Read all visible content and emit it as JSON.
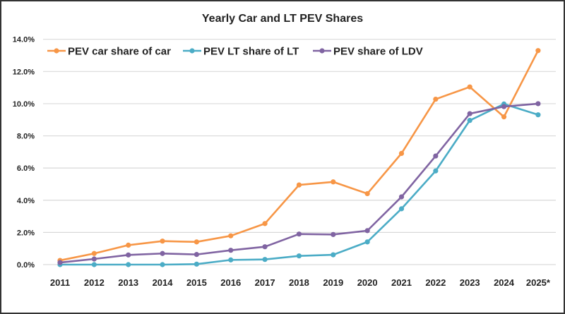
{
  "chart_data": {
    "type": "line",
    "title": "Yearly Car and LT PEV Shares",
    "xlabel": "",
    "ylabel": "",
    "categories": [
      "2011",
      "2012",
      "2013",
      "2014",
      "2015",
      "2016",
      "2017",
      "2018",
      "2019",
      "2020",
      "2021",
      "2022",
      "2023",
      "2024",
      "2025*"
    ],
    "ylim": [
      0,
      14
    ],
    "yticks": [
      "0.0%",
      "2.0%",
      "4.0%",
      "6.0%",
      "8.0%",
      "10.0%",
      "12.0%",
      "14.0%"
    ],
    "y_unit": "%",
    "grid": true,
    "legend_placement": "top-left",
    "series": [
      {
        "name": "PEV car share of car",
        "color": "#F79646",
        "values": [
          0.26,
          0.69,
          1.21,
          1.46,
          1.41,
          1.79,
          2.55,
          4.95,
          5.14,
          4.41,
          6.91,
          10.28,
          11.04,
          9.18,
          13.3
        ]
      },
      {
        "name": "PEV LT share of LT",
        "color": "#4BACC6",
        "values": [
          0.0,
          0.0,
          0.0,
          0.0,
          0.03,
          0.29,
          0.32,
          0.54,
          0.61,
          1.41,
          3.47,
          5.82,
          8.96,
          9.98,
          9.31
        ]
      },
      {
        "name": "PEV share of LDV",
        "color": "#8064A2",
        "values": [
          0.13,
          0.35,
          0.6,
          0.69,
          0.63,
          0.89,
          1.11,
          1.9,
          1.87,
          2.11,
          4.21,
          6.75,
          9.38,
          9.82,
          10.0
        ]
      }
    ]
  }
}
